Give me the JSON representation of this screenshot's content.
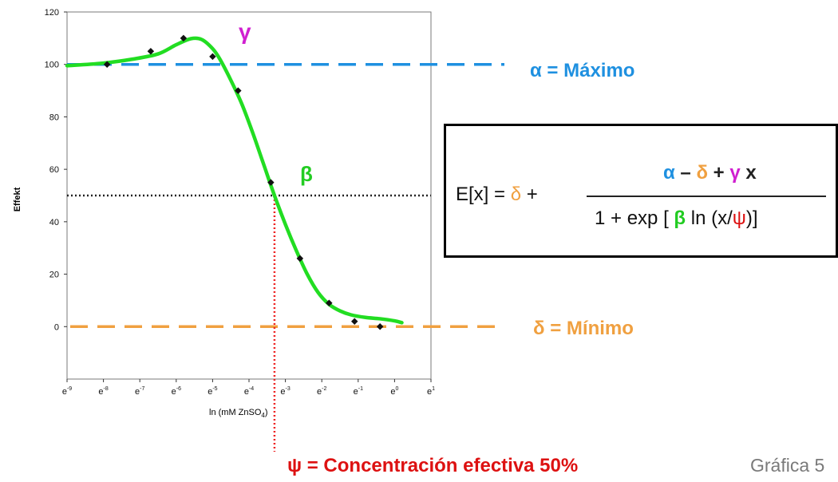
{
  "chart_data": {
    "type": "scatter",
    "ylabel": "Effekt",
    "ylim": [
      -20,
      120
    ],
    "yticks": [
      0,
      20,
      40,
      60,
      80,
      100,
      120
    ],
    "xlim": [
      -9,
      1
    ],
    "xticks": [
      -9,
      -8,
      -7,
      -6,
      -5,
      -4,
      -3,
      -2,
      -1,
      0,
      1
    ],
    "xticklabels_base": "e",
    "points": [
      {
        "x": -7.9,
        "y": 100
      },
      {
        "x": -6.7,
        "y": 105
      },
      {
        "x": -5.8,
        "y": 110
      },
      {
        "x": -5.0,
        "y": 103
      },
      {
        "x": -4.3,
        "y": 90
      },
      {
        "x": -3.4,
        "y": 55
      },
      {
        "x": -2.6,
        "y": 26
      },
      {
        "x": -1.8,
        "y": 9
      },
      {
        "x": -1.1,
        "y": 2
      },
      {
        "x": -0.4,
        "y": 0
      }
    ],
    "fit_curve": [
      [
        -9.0,
        99.5
      ],
      [
        -8.0,
        100.5
      ],
      [
        -7.2,
        102
      ],
      [
        -6.5,
        104
      ],
      [
        -6.0,
        107.5
      ],
      [
        -5.6,
        109.8
      ],
      [
        -5.3,
        109.5
      ],
      [
        -5.0,
        106
      ],
      [
        -4.8,
        102
      ],
      [
        -4.5,
        94
      ],
      [
        -4.2,
        85
      ],
      [
        -3.9,
        74
      ],
      [
        -3.6,
        62
      ],
      [
        -3.3,
        50
      ],
      [
        -3.0,
        39
      ],
      [
        -2.7,
        29
      ],
      [
        -2.4,
        20
      ],
      [
        -2.1,
        13
      ],
      [
        -1.8,
        8.5
      ],
      [
        -1.5,
        6
      ],
      [
        -1.2,
        4.5
      ],
      [
        -0.8,
        3.5
      ],
      [
        -0.4,
        3
      ],
      [
        0.0,
        2.2
      ],
      [
        0.2,
        1.5
      ]
    ],
    "alpha_level": 100,
    "delta_level": 0,
    "midpoint_y": 50,
    "ec50_x": -3.3,
    "colors": {
      "curve": "#22dd22",
      "alpha": "#1e90e0",
      "delta": "#f0a040",
      "psi": "#ee2222",
      "dotted": "#222222",
      "points": "#111111"
    }
  },
  "annotations": {
    "alpha": "α =  Máximo",
    "delta": "δ = Mínimo",
    "psi": "ψ = Concentración efectiva 50%",
    "gamma": "γ",
    "beta": "β"
  },
  "xlabel_main": "ln (mM ZnSO",
  "xlabel_sub": "4",
  "xlabel_end": ")",
  "caption": "Gráfica 5",
  "formula": {
    "lhs_a": "E[x] = ",
    "lhs_delta": "δ",
    "lhs_b": " +",
    "num_alpha": "α",
    "num_minus": " – ",
    "num_delta": "δ",
    "num_plus": " + ",
    "num_gamma": "γ",
    "num_x": " x",
    "den_a": "1 + exp [ ",
    "den_beta": "β",
    "den_b": " ln (x/",
    "den_psi": "ψ",
    "den_c": ")]"
  }
}
